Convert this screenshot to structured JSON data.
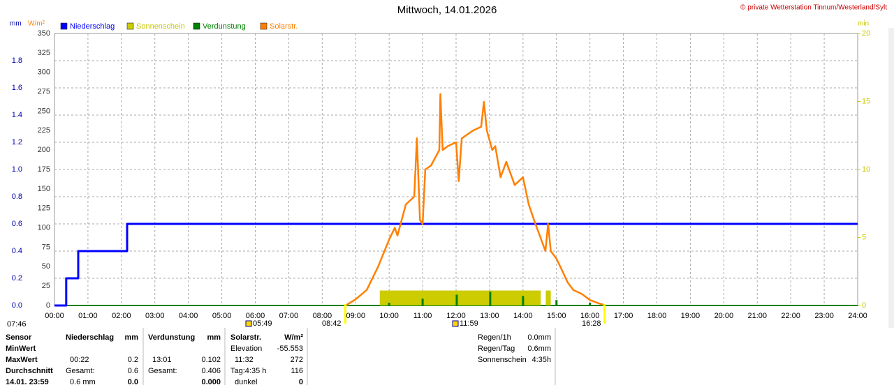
{
  "chart_data": {
    "type": "line",
    "title": "Mittwoch, 14.01.2026",
    "subtitle": "© private Wetterstation Tinnum/Westerland/Sylt",
    "y_label": "mm",
    "y2_label": "W/m²",
    "y3_label": "min",
    "xlim": [
      0,
      24
    ],
    "xticks": [
      {
        "value": 0,
        "label": "00:00"
      },
      {
        "value": 1,
        "label": "01:00"
      },
      {
        "value": 2,
        "label": "02:00"
      },
      {
        "value": 3,
        "label": "03:00"
      },
      {
        "value": 4,
        "label": "04:00"
      },
      {
        "value": 5,
        "label": "05:00"
      },
      {
        "value": 6,
        "label": "06:00"
      },
      {
        "value": 7,
        "label": "07:00"
      },
      {
        "value": 8,
        "label": "08:00"
      },
      {
        "value": 9,
        "label": "09:00"
      },
      {
        "value": 10,
        "label": "10:00"
      },
      {
        "value": 11,
        "label": "11:00"
      },
      {
        "value": 12,
        "label": "12:00"
      },
      {
        "value": 13,
        "label": "13:00"
      },
      {
        "value": 14,
        "label": "14:00"
      },
      {
        "value": 15,
        "label": "15:00"
      },
      {
        "value": 16,
        "label": "16:00"
      },
      {
        "value": 17,
        "label": "17:00"
      },
      {
        "value": 18,
        "label": "18:00"
      },
      {
        "value": 19,
        "label": "19:00"
      },
      {
        "value": 20,
        "label": "20:00"
      },
      {
        "value": 21,
        "label": "21:00"
      },
      {
        "value": 22,
        "label": "22:00"
      },
      {
        "value": 23,
        "label": "23:00"
      },
      {
        "value": 24,
        "label": "24:00"
      }
    ],
    "ylim": [
      0,
      2
    ],
    "yticks": [
      {
        "value": 0,
        "label": "0.0"
      },
      0.2,
      0.4,
      0.6,
      0.8,
      {
        "value": 1,
        "label": "1.0"
      },
      1.2,
      1.4,
      1.6,
      1.8
    ],
    "y2lim": [
      0,
      350
    ],
    "y2ticks": [
      0,
      25,
      50,
      75,
      100,
      125,
      150,
      175,
      200,
      225,
      250,
      275,
      300,
      325,
      350
    ],
    "y3lim": [
      0,
      20
    ],
    "y3ticks": [
      0,
      5,
      10,
      15,
      20
    ],
    "grid": true,
    "series": [
      {
        "name": "Niederschlag",
        "type": "line",
        "color": "#0000ff",
        "axis": "y",
        "x": [
          0,
          0.35,
          0.35,
          0.71,
          0.71,
          2.17,
          2.17,
          24
        ],
        "values": [
          0,
          0,
          0.2,
          0.2,
          0.4,
          0.4,
          0.6,
          0.6
        ]
      },
      {
        "name": "Sonnenschein",
        "type": "histogram",
        "color": "#cccc00",
        "axis": "y3",
        "bins": [
          9.72,
          14.55,
          14.68,
          14.85
        ],
        "values": [
          1.1,
          0,
          1.1
        ]
      },
      {
        "name": "Verdunstung",
        "type": "bar",
        "color": "#008000",
        "axis": "y",
        "x": [
          6,
          10,
          11,
          12.02,
          13.02,
          14,
          15,
          16
        ],
        "values": [
          0.005,
          0.02,
          0.05,
          0.08,
          0.102,
          0.07,
          0.04,
          0.02
        ]
      },
      {
        "name": "Solarstr.",
        "type": "line",
        "color": "#ff8000",
        "axis": "y2",
        "x": [
          8.7,
          9,
          9.33,
          9.67,
          10,
          10.17,
          10.25,
          10.5,
          10.75,
          10.83,
          10.92,
          11,
          11.08,
          11.25,
          11.5,
          11.53,
          11.6,
          11.75,
          12,
          12.08,
          12.17,
          12.5,
          12.75,
          12.83,
          12.92,
          13.08,
          13.17,
          13.33,
          13.5,
          13.75,
          14,
          14.17,
          14.33,
          14.5,
          14.67,
          14.75,
          14.83,
          15,
          15.17,
          15.33,
          15.5,
          15.75,
          16,
          16.25,
          16.47
        ],
        "values": [
          0,
          8,
          20,
          50,
          85,
          100,
          90,
          130,
          140,
          215,
          110,
          105,
          175,
          180,
          200,
          272,
          200,
          205,
          210,
          160,
          215,
          225,
          230,
          262,
          225,
          200,
          205,
          165,
          185,
          155,
          165,
          130,
          110,
          90,
          70,
          105,
          70,
          60,
          45,
          30,
          20,
          15,
          7,
          3,
          0
        ]
      }
    ],
    "day_marks": [
      "07:46",
      "05:49",
      "08:42",
      "11:59",
      "16:28"
    ]
  },
  "table": {
    "rows": [
      [
        "Sensor",
        "Niederschlag",
        "mm",
        "Verdunstung",
        "mm",
        "Solarstr.",
        "W/m²"
      ],
      [
        "MinWert",
        "",
        "",
        "",
        "",
        "Elevation",
        "-55.553"
      ],
      [
        "MaxWert",
        "00:22",
        "0.2",
        "13:01",
        "0.102",
        "11:32",
        "272"
      ],
      [
        "Durchschnitt",
        "Gesamt:",
        "0.6",
        "Gesamt:",
        "0.406",
        "Tag:4:35 h",
        "116"
      ],
      [
        "14.01. 23:59",
        "0.6 mm",
        "0.0",
        "",
        "0.000",
        "dunkel",
        "0"
      ]
    ],
    "summary": [
      [
        "Regen/1h",
        "0.0mm"
      ],
      [
        "Regen/Tag",
        "0.6mm"
      ],
      [
        "Sonnenschein",
        "4:35h"
      ]
    ]
  }
}
